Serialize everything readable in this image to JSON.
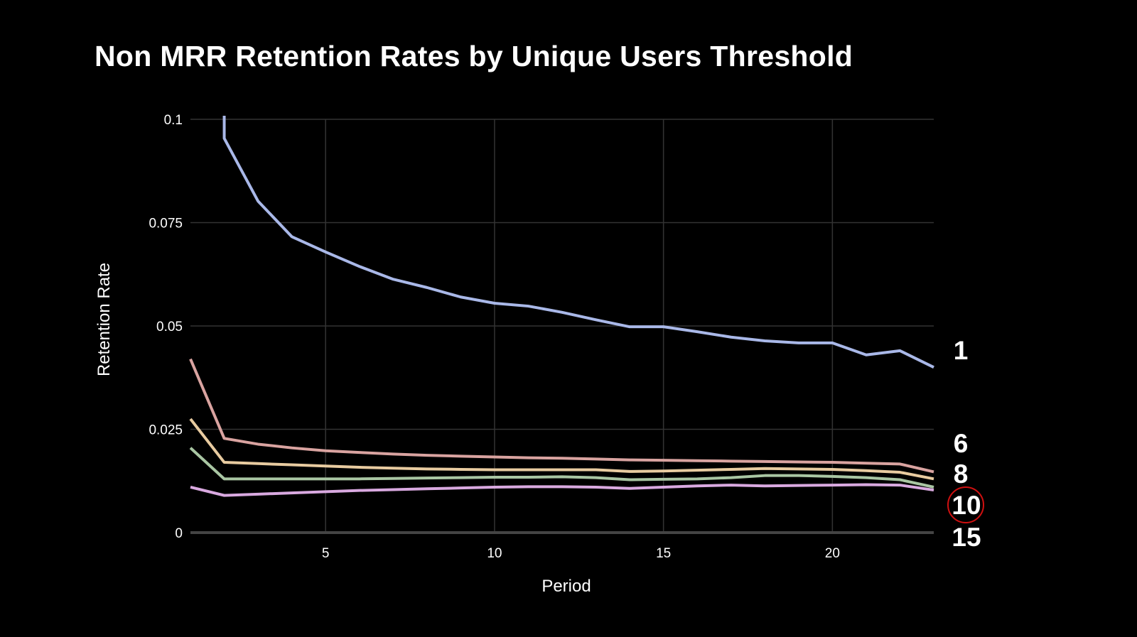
{
  "chart_data": {
    "type": "line",
    "title": "Non MRR Retention Rates by Unique Users Threshold",
    "xlabel": "Period",
    "ylabel": "Retention Rate",
    "xlim": [
      1,
      23
    ],
    "ylim": [
      0,
      0.1
    ],
    "xticks": [
      5,
      10,
      15,
      20
    ],
    "xtick_labels": [
      "5",
      "10",
      "15",
      "20"
    ],
    "yticks": [
      0,
      0.025,
      0.05,
      0.075,
      0.1
    ],
    "ytick_labels": [
      "0",
      "0.025",
      "0.05",
      "0.075",
      "0.1"
    ],
    "grid": true,
    "legend": "end-of-line labels, right",
    "highlighted_label": "10",
    "highlight_color": "#d01010",
    "series": [
      {
        "name": "1",
        "color": "#a9b8e8",
        "x": [
          2,
          2,
          3,
          4,
          5,
          6,
          7,
          8,
          9,
          10,
          11,
          12,
          13,
          14,
          15,
          16,
          17,
          18,
          19,
          20,
          21,
          22,
          23
        ],
        "values": [
          0.1015,
          0.0954,
          0.0802,
          0.0716,
          0.0679,
          0.0644,
          0.0613,
          0.0593,
          0.057,
          0.0555,
          0.0548,
          0.0533,
          0.0515,
          0.0498,
          0.0498,
          0.0486,
          0.0473,
          0.0464,
          0.0459,
          0.0459,
          0.043,
          0.044,
          0.04
        ]
      },
      {
        "name": "6",
        "color": "#d9a3a0",
        "x": [
          1,
          2,
          3,
          4,
          5,
          6,
          7,
          8,
          9,
          10,
          11,
          12,
          13,
          14,
          15,
          16,
          17,
          18,
          19,
          20,
          21,
          22,
          23
        ],
        "values": [
          0.042,
          0.0228,
          0.0214,
          0.0205,
          0.0198,
          0.0194,
          0.019,
          0.0187,
          0.0185,
          0.0183,
          0.0181,
          0.018,
          0.0178,
          0.0176,
          0.0175,
          0.0174,
          0.0173,
          0.0172,
          0.0171,
          0.017,
          0.0168,
          0.0166,
          0.0147
        ]
      },
      {
        "name": "8",
        "color": "#e8cba0",
        "x": [
          1,
          2,
          3,
          4,
          5,
          6,
          7,
          8,
          9,
          10,
          11,
          12,
          13,
          14,
          15,
          16,
          17,
          18,
          19,
          20,
          21,
          22,
          23
        ],
        "values": [
          0.0275,
          0.017,
          0.0167,
          0.0164,
          0.0161,
          0.0158,
          0.0156,
          0.0154,
          0.0153,
          0.0152,
          0.0152,
          0.0152,
          0.0152,
          0.0148,
          0.0149,
          0.0151,
          0.0153,
          0.0155,
          0.0154,
          0.0153,
          0.015,
          0.0146,
          0.013
        ]
      },
      {
        "name": "10",
        "color": "#a9c6a3",
        "x": [
          1,
          2,
          3,
          4,
          5,
          6,
          7,
          8,
          9,
          10,
          11,
          12,
          13,
          14,
          15,
          16,
          17,
          18,
          19,
          20,
          21,
          22,
          23
        ],
        "values": [
          0.0205,
          0.013,
          0.013,
          0.013,
          0.013,
          0.013,
          0.0131,
          0.0132,
          0.0133,
          0.0134,
          0.0134,
          0.0135,
          0.0133,
          0.0128,
          0.0129,
          0.013,
          0.0133,
          0.0138,
          0.0138,
          0.0136,
          0.0133,
          0.0128,
          0.011
        ]
      },
      {
        "name": "15",
        "color": "#d9a9e0",
        "x": [
          1,
          2,
          3,
          4,
          5,
          6,
          7,
          8,
          9,
          10,
          11,
          12,
          13,
          14,
          15,
          16,
          17,
          18,
          19,
          20,
          21,
          22,
          23
        ],
        "values": [
          0.011,
          0.009,
          0.0093,
          0.0096,
          0.0099,
          0.0102,
          0.0104,
          0.0106,
          0.0108,
          0.011,
          0.0111,
          0.0111,
          0.011,
          0.0107,
          0.011,
          0.0113,
          0.0115,
          0.0113,
          0.0114,
          0.0115,
          0.0116,
          0.0115,
          0.0103
        ]
      }
    ]
  }
}
